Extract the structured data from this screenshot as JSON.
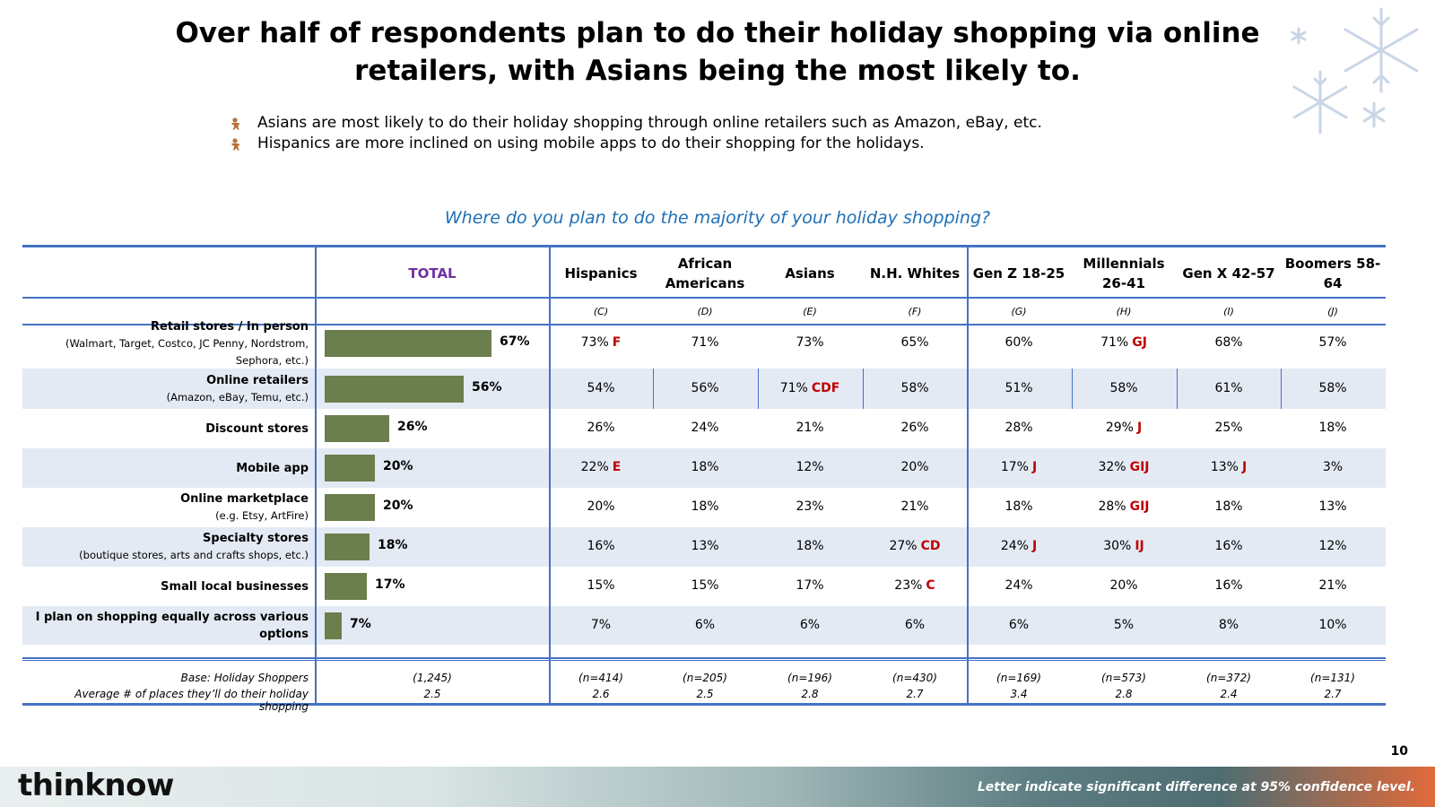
{
  "title": "Over half of respondents plan to do their holiday shopping via online retailers, with Asians being the most likely to.",
  "bullets": [
    "Asians are most likely to do their holiday shopping through online retailers such as Amazon, eBay, etc.",
    "Hispanics are more inclined on using mobile apps to do their shopping for the holidays."
  ],
  "question": "Where do you plan to do the majority of your holiday shopping?",
  "table": {
    "total_header": "TOTAL",
    "columns": [
      {
        "name": "Hispanics",
        "letter": "(C)"
      },
      {
        "name": "African Americans",
        "letter": "(D)"
      },
      {
        "name": "Asians",
        "letter": "(E)"
      },
      {
        "name": "N.H. Whites",
        "letter": "(F)"
      },
      {
        "name": "Gen Z 18-25",
        "letter": "(G)"
      },
      {
        "name": "Millennials 26-41",
        "letter": "(H)"
      },
      {
        "name": "Gen X 42-57",
        "letter": "(I)"
      },
      {
        "name": "Boomers 58-64",
        "letter": "(J)"
      }
    ],
    "rows": [
      {
        "label": "Retail stores / In person",
        "sub": "(Walmart, Target, Costco,  JC Penny, Nordstrom, Sephora, etc.)",
        "total": 67,
        "total_label": "67%",
        "cells": [
          [
            "73%",
            "F"
          ],
          [
            "71%",
            ""
          ],
          [
            "73%",
            ""
          ],
          [
            "65%",
            ""
          ],
          [
            "60%",
            ""
          ],
          [
            "71%",
            "GJ"
          ],
          [
            "68%",
            ""
          ],
          [
            "57%",
            ""
          ]
        ]
      },
      {
        "label": "Online retailers",
        "sub": "(Amazon, eBay, Temu, etc.)",
        "total": 56,
        "total_label": "56%",
        "cells": [
          [
            "54%",
            ""
          ],
          [
            "56%",
            ""
          ],
          [
            "71%",
            "CDF"
          ],
          [
            "58%",
            ""
          ],
          [
            "51%",
            ""
          ],
          [
            "58%",
            ""
          ],
          [
            "61%",
            ""
          ],
          [
            "58%",
            ""
          ]
        ]
      },
      {
        "label": "Discount stores",
        "sub": "",
        "total": 26,
        "total_label": "26%",
        "cells": [
          [
            "26%",
            ""
          ],
          [
            "24%",
            ""
          ],
          [
            "21%",
            ""
          ],
          [
            "26%",
            ""
          ],
          [
            "28%",
            ""
          ],
          [
            "29%",
            "J"
          ],
          [
            "25%",
            ""
          ],
          [
            "18%",
            ""
          ]
        ]
      },
      {
        "label": "Mobile app",
        "sub": "",
        "total": 20,
        "total_label": "20%",
        "cells": [
          [
            "22%",
            "E"
          ],
          [
            "18%",
            ""
          ],
          [
            "12%",
            ""
          ],
          [
            "20%",
            ""
          ],
          [
            "17%",
            "J"
          ],
          [
            "32%",
            "GIJ"
          ],
          [
            "13%",
            "J"
          ],
          [
            "3%",
            ""
          ]
        ]
      },
      {
        "label": "Online marketplace",
        "sub": "(e.g. Etsy, ArtFire)",
        "total": 20,
        "total_label": "20%",
        "cells": [
          [
            "20%",
            ""
          ],
          [
            "18%",
            ""
          ],
          [
            "23%",
            ""
          ],
          [
            "21%",
            ""
          ],
          [
            "18%",
            ""
          ],
          [
            "28%",
            "GIJ"
          ],
          [
            "18%",
            ""
          ],
          [
            "13%",
            ""
          ]
        ]
      },
      {
        "label": "Specialty stores",
        "sub": "(boutique stores, arts and crafts shops, etc.)",
        "total": 18,
        "total_label": "18%",
        "cells": [
          [
            "16%",
            ""
          ],
          [
            "13%",
            ""
          ],
          [
            "18%",
            ""
          ],
          [
            "27%",
            "CD"
          ],
          [
            "24%",
            "J"
          ],
          [
            "30%",
            "IJ"
          ],
          [
            "16%",
            ""
          ],
          [
            "12%",
            ""
          ]
        ]
      },
      {
        "label": "Small local businesses",
        "sub": "",
        "total": 17,
        "total_label": "17%",
        "cells": [
          [
            "15%",
            ""
          ],
          [
            "15%",
            ""
          ],
          [
            "17%",
            ""
          ],
          [
            "23%",
            "C"
          ],
          [
            "24%",
            ""
          ],
          [
            "20%",
            ""
          ],
          [
            "16%",
            ""
          ],
          [
            "21%",
            ""
          ]
        ]
      },
      {
        "label": "I plan on shopping equally across various options",
        "sub": "",
        "total": 7,
        "total_label": "7%",
        "cells": [
          [
            "7%",
            ""
          ],
          [
            "6%",
            ""
          ],
          [
            "6%",
            ""
          ],
          [
            "6%",
            ""
          ],
          [
            "6%",
            ""
          ],
          [
            "5%",
            ""
          ],
          [
            "8%",
            ""
          ],
          [
            "10%",
            ""
          ]
        ]
      }
    ],
    "base_label": "Base: Holiday Shoppers",
    "avg_label": "Average # of places they’ll do their holiday shopping",
    "base_values": [
      "(1,245)",
      "(n=414)",
      "(n=205)",
      "(n=196)",
      "(n=430)",
      "(n=169)",
      "(n=573)",
      "(n=372)",
      "(n=131)"
    ],
    "avg_values": [
      "2.5",
      "2.6",
      "2.5",
      "2.8",
      "2.7",
      "3.4",
      "2.8",
      "2.4",
      "2.7"
    ]
  },
  "chart_data": {
    "type": "bar",
    "categories": [
      "Retail stores / In person",
      "Online retailers",
      "Discount stores",
      "Mobile app",
      "Online marketplace",
      "Specialty stores",
      "Small local businesses",
      "I plan on shopping equally across various options"
    ],
    "values": [
      67,
      56,
      26,
      20,
      20,
      18,
      17,
      7
    ],
    "title": "TOTAL"
  },
  "page_number": "10",
  "logo": "thinknow",
  "footnote": "Letter indicate significant difference at 95% confidence level.",
  "colors": {
    "accent_blue": "#4472c4",
    "bar_green": "#6b7f4c",
    "sig_red": "#c00000",
    "total_purple": "#7030a0",
    "question_blue": "#1f6fb6",
    "row_band": "#e4eaf4"
  },
  "icons": {
    "bullet": "gingerbread-icon",
    "decoration": "snowflake-icon"
  }
}
